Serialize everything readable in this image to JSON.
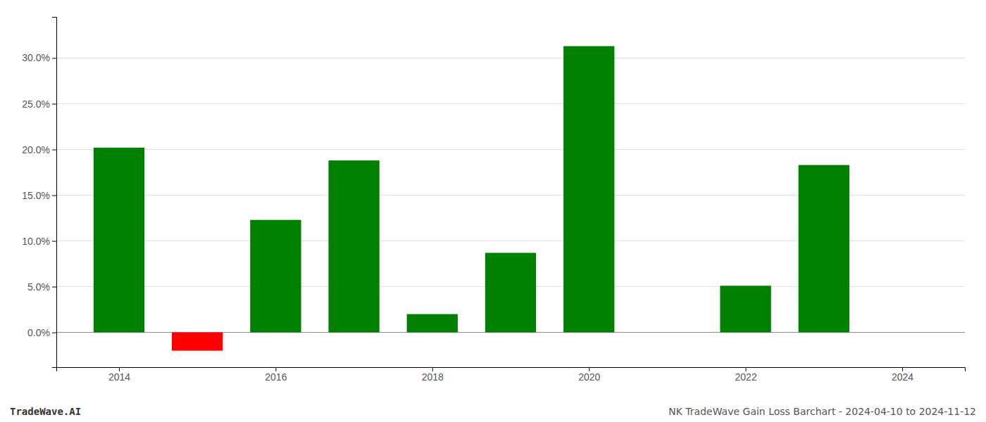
{
  "chart_data": {
    "type": "bar",
    "x": [
      2014,
      2015,
      2016,
      2017,
      2018,
      2019,
      2020,
      2021,
      2022,
      2023,
      2024
    ],
    "values": [
      0.202,
      -0.02,
      0.123,
      0.188,
      0.02,
      0.087,
      0.313,
      null,
      0.051,
      0.183,
      null
    ],
    "colors": [
      "#008000",
      "#ff0000",
      "#008000",
      "#008000",
      "#008000",
      "#008000",
      "#008000",
      "#008000",
      "#008000",
      "#008000",
      "#008000"
    ],
    "xlim": [
      2013.2,
      2024.8
    ],
    "xticks": [
      2014,
      2016,
      2018,
      2020,
      2022,
      2024
    ],
    "ylim": [
      -0.038,
      0.345
    ],
    "yticks": [
      {
        "value": 0,
        "label": "0.0%"
      },
      {
        "value": 0.05,
        "label": "5.0%"
      },
      {
        "value": 0.1,
        "label": "10.0%"
      },
      {
        "value": 0.15,
        "label": "15.0%"
      },
      {
        "value": 0.2,
        "label": "20.0%"
      },
      {
        "value": 0.25,
        "label": "25.0%"
      },
      {
        "value": 0.3,
        "label": "30.0%"
      }
    ],
    "grid": true,
    "annotations": [
      "TradeWave.AI",
      "NK TradeWave Gain Loss Barchart - 2024-04-10 to 2024-11-12"
    ]
  }
}
